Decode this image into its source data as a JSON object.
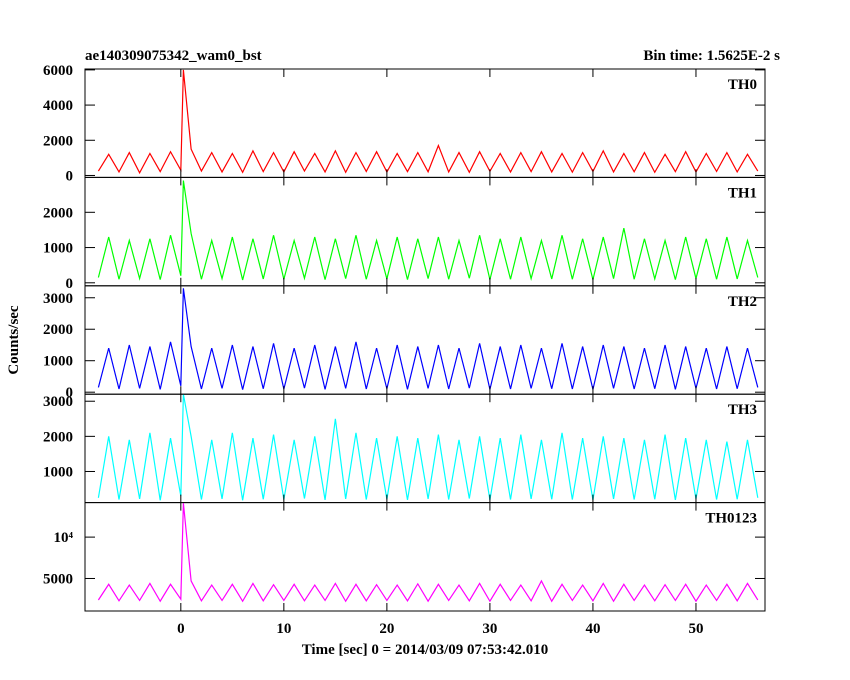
{
  "title": "ae140309075342_wam0_bst",
  "subtitle": "Bin time: 1.5625E-2 s",
  "xlabel": "Time [sec] 0 = 2014/03/09 07:53:42.010",
  "ylabel": "Counts/sec",
  "chart_data": [
    {
      "type": "line",
      "name": "TH0",
      "color": "#ff0000",
      "xlim": [
        -9.3,
        56.7
      ],
      "xticks": [
        0,
        10,
        20,
        30,
        40,
        50
      ],
      "ylim": [
        -110,
        6050
      ],
      "yticks": [
        0,
        2000,
        4000,
        6000
      ],
      "x": [
        -8,
        -7,
        -6,
        -5,
        -4,
        -3,
        -2,
        -1,
        0,
        0.25,
        1,
        2,
        3,
        4,
        5,
        6,
        7,
        8,
        9,
        10,
        11,
        12,
        13,
        14,
        15,
        16,
        17,
        18,
        19,
        20,
        21,
        22,
        23,
        24,
        25,
        26,
        27,
        28,
        29,
        30,
        31,
        32,
        33,
        34,
        35,
        36,
        37,
        38,
        39,
        40,
        41,
        42,
        43,
        44,
        45,
        46,
        47,
        48,
        49,
        50,
        51,
        52,
        53,
        54,
        55,
        56
      ],
      "values": [
        250,
        1200,
        200,
        1300,
        150,
        1250,
        220,
        1350,
        300,
        6000,
        1500,
        250,
        1300,
        200,
        1250,
        180,
        1400,
        220,
        1300,
        200,
        1350,
        250,
        1250,
        200,
        1400,
        180,
        1300,
        230,
        1350,
        200,
        1250,
        220,
        1300,
        210,
        1700,
        200,
        1300,
        180,
        1350,
        240,
        1250,
        200,
        1300,
        220,
        1350,
        200,
        1250,
        190,
        1300,
        230,
        1400,
        200,
        1250,
        210,
        1300,
        180,
        1200,
        220,
        1350,
        200,
        1250,
        230,
        1300,
        200,
        1200,
        250
      ]
    },
    {
      "type": "line",
      "name": "TH1",
      "color": "#00ff00",
      "xlim": [
        -9.3,
        56.7
      ],
      "xticks": [
        0,
        10,
        20,
        30,
        40,
        50
      ],
      "ylim": [
        -85,
        2990
      ],
      "yticks": [
        0,
        1000,
        2000
      ],
      "x": [
        -8,
        -7,
        -6,
        -5,
        -4,
        -3,
        -2,
        -1,
        0,
        0.25,
        1,
        2,
        3,
        4,
        5,
        6,
        7,
        8,
        9,
        10,
        11,
        12,
        13,
        14,
        15,
        16,
        17,
        18,
        19,
        20,
        21,
        22,
        23,
        24,
        25,
        26,
        27,
        28,
        29,
        30,
        31,
        32,
        33,
        34,
        35,
        36,
        37,
        38,
        39,
        40,
        41,
        42,
        43,
        44,
        45,
        46,
        47,
        48,
        49,
        50,
        51,
        52,
        53,
        54,
        55,
        56
      ],
      "values": [
        150,
        1300,
        100,
        1200,
        120,
        1250,
        90,
        1350,
        200,
        2900,
        1400,
        100,
        1200,
        120,
        1300,
        80,
        1250,
        110,
        1350,
        100,
        1200,
        130,
        1300,
        90,
        1250,
        120,
        1350,
        100,
        1200,
        110,
        1300,
        90,
        1250,
        120,
        1300,
        100,
        1200,
        130,
        1350,
        90,
        1250,
        100,
        1300,
        120,
        1200,
        110,
        1350,
        100,
        1250,
        90,
        1300,
        120,
        1550,
        100,
        1250,
        110,
        1200,
        90,
        1300,
        120,
        1250,
        100,
        1300,
        110,
        1200,
        150
      ]
    },
    {
      "type": "line",
      "name": "TH2",
      "color": "#0000ff",
      "xlim": [
        -9.3,
        56.7
      ],
      "xticks": [
        0,
        10,
        20,
        30,
        40,
        50
      ],
      "ylim": [
        -64,
        3380
      ],
      "yticks": [
        0,
        1000,
        2000,
        3000
      ],
      "x": [
        -8,
        -7,
        -6,
        -5,
        -4,
        -3,
        -2,
        -1,
        0,
        0.25,
        1,
        2,
        3,
        4,
        5,
        6,
        7,
        8,
        9,
        10,
        11,
        12,
        13,
        14,
        15,
        16,
        17,
        18,
        19,
        20,
        21,
        22,
        23,
        24,
        25,
        26,
        27,
        28,
        29,
        30,
        31,
        32,
        33,
        34,
        35,
        36,
        37,
        38,
        39,
        40,
        41,
        42,
        43,
        44,
        45,
        46,
        47,
        48,
        49,
        50,
        51,
        52,
        53,
        54,
        55,
        56
      ],
      "values": [
        150,
        1400,
        100,
        1500,
        120,
        1450,
        90,
        1600,
        200,
        3300,
        1450,
        100,
        1400,
        120,
        1500,
        80,
        1450,
        110,
        1550,
        100,
        1400,
        130,
        1500,
        90,
        1450,
        120,
        1600,
        100,
        1400,
        110,
        1500,
        90,
        1450,
        120,
        1500,
        100,
        1400,
        130,
        1550,
        90,
        1450,
        100,
        1500,
        120,
        1400,
        110,
        1550,
        100,
        1450,
        90,
        1500,
        120,
        1450,
        100,
        1400,
        110,
        1500,
        90,
        1450,
        120,
        1400,
        100,
        1450,
        110,
        1400,
        150
      ]
    },
    {
      "type": "line",
      "name": "TH3",
      "color": "#00ffff",
      "xlim": [
        -9.3,
        56.7
      ],
      "xticks": [
        0,
        10,
        20,
        30,
        40,
        50
      ],
      "ylim": [
        114,
        3200
      ],
      "yticks": [
        1000,
        2000,
        3000
      ],
      "x": [
        -8,
        -7,
        -6,
        -5,
        -4,
        -3,
        -2,
        -1,
        0,
        0.25,
        1,
        2,
        3,
        4,
        5,
        6,
        7,
        8,
        9,
        10,
        11,
        12,
        13,
        14,
        15,
        16,
        17,
        18,
        19,
        20,
        21,
        22,
        23,
        24,
        25,
        26,
        27,
        28,
        29,
        30,
        31,
        32,
        33,
        34,
        35,
        36,
        37,
        38,
        39,
        40,
        41,
        42,
        43,
        44,
        45,
        46,
        47,
        48,
        49,
        50,
        51,
        52,
        53,
        54,
        55,
        56
      ],
      "values": [
        250,
        2000,
        200,
        1900,
        220,
        2100,
        180,
        1950,
        300,
        3200,
        2000,
        200,
        1900,
        220,
        2100,
        180,
        1950,
        210,
        2050,
        200,
        1900,
        230,
        2000,
        190,
        2500,
        220,
        2100,
        200,
        1950,
        210,
        2000,
        190,
        1950,
        220,
        2050,
        200,
        1900,
        230,
        2000,
        190,
        1950,
        200,
        2050,
        220,
        1900,
        210,
        2100,
        200,
        1950,
        190,
        2000,
        220,
        1950,
        200,
        1900,
        210,
        2050,
        190,
        1950,
        220,
        1900,
        200,
        1850,
        210,
        1900,
        250
      ]
    },
    {
      "type": "line",
      "name": "TH0123",
      "color": "#ff00ff",
      "xlim": [
        -9.3,
        56.7
      ],
      "xticks": [
        0,
        10,
        20,
        30,
        40,
        50
      ],
      "ylim": [
        1070,
        14170
      ],
      "yticks": [
        5000,
        {
          "value": 10000,
          "label": "10⁴"
        }
      ],
      "x": [
        -8,
        -7,
        -6,
        -5,
        -4,
        -3,
        -2,
        -1,
        0,
        0.25,
        1,
        2,
        3,
        4,
        5,
        6,
        7,
        8,
        9,
        10,
        11,
        12,
        13,
        14,
        15,
        16,
        17,
        18,
        19,
        20,
        21,
        22,
        23,
        24,
        25,
        26,
        27,
        28,
        29,
        30,
        31,
        32,
        33,
        34,
        35,
        36,
        37,
        38,
        39,
        40,
        41,
        42,
        43,
        44,
        45,
        46,
        47,
        48,
        49,
        50,
        51,
        52,
        53,
        54,
        55,
        56
      ],
      "values": [
        2400,
        4300,
        2300,
        4200,
        2350,
        4400,
        2250,
        4300,
        2500,
        14100,
        4700,
        2300,
        4200,
        2350,
        4300,
        2250,
        4400,
        2300,
        4250,
        2350,
        4300,
        2300,
        4200,
        2350,
        4400,
        2250,
        4300,
        2300,
        4250,
        2350,
        4200,
        2300,
        4350,
        2250,
        4300,
        2350,
        4200,
        2300,
        4400,
        2250,
        4300,
        2350,
        4200,
        2300,
        4700,
        2250,
        4300,
        2350,
        4200,
        2300,
        4400,
        2250,
        4300,
        2350,
        4200,
        2300,
        4250,
        2350,
        4300,
        2250,
        4200,
        2350,
        4300,
        2300,
        4400,
        2400
      ]
    }
  ]
}
